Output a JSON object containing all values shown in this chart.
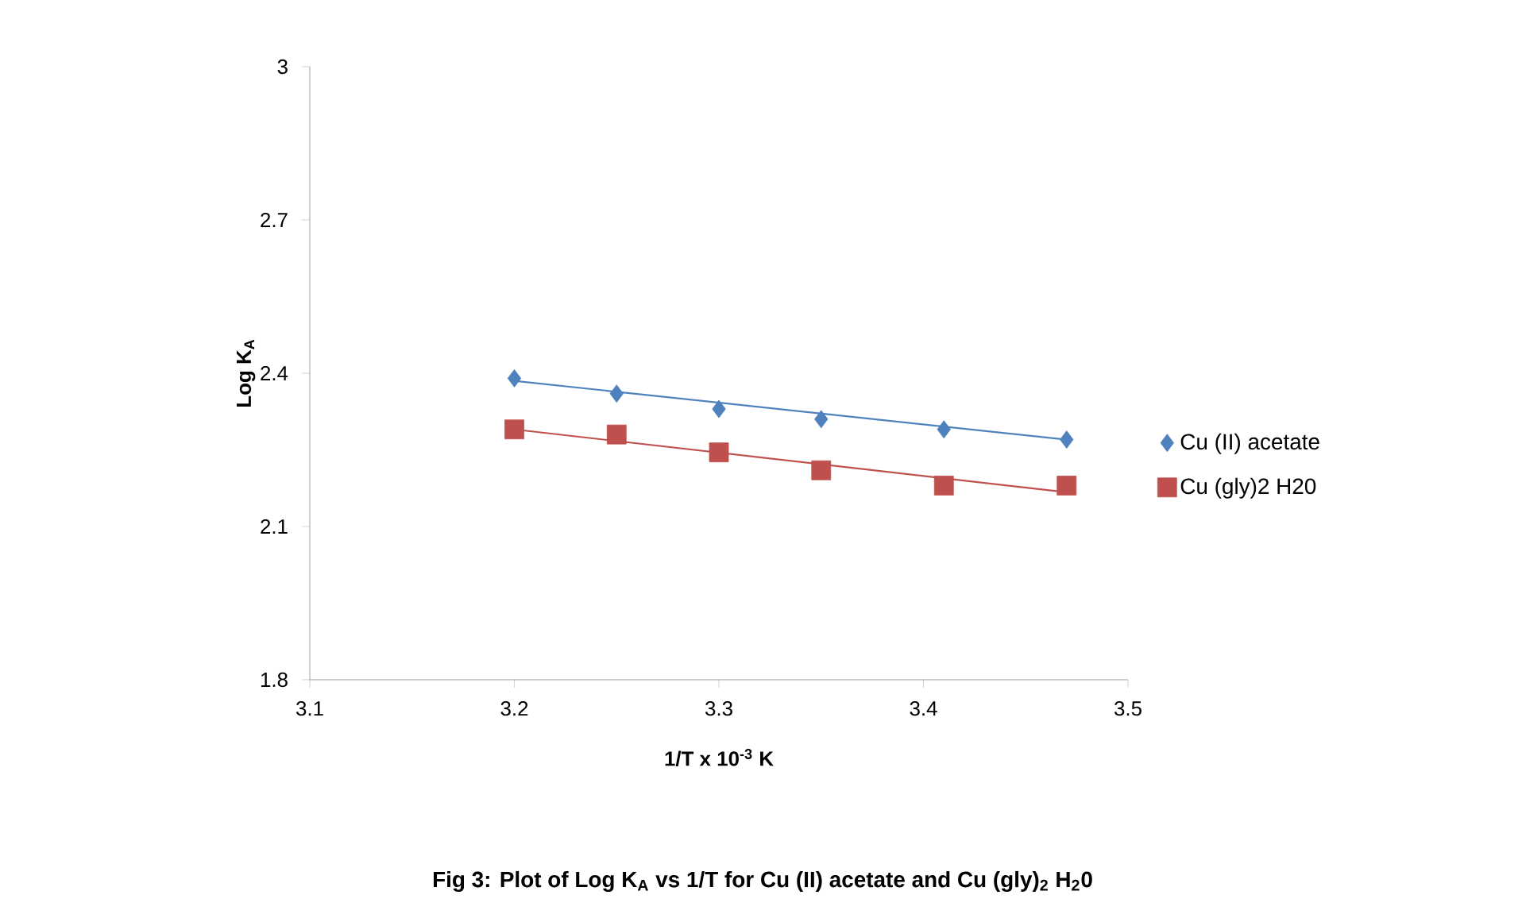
{
  "chart_data": {
    "type": "scatter",
    "xlabel": "1/T x 10$^{-3}$ K",
    "ylabel": "Log K$_{A}$",
    "xlim": [
      3.1,
      3.5
    ],
    "ylim": [
      1.8,
      3
    ],
    "xticks": [
      3.1,
      3.2,
      3.3,
      3.4,
      3.5
    ],
    "yticks": [
      1.8,
      2.1,
      2.4,
      2.7,
      3
    ],
    "legend": "right",
    "grid": false,
    "series": [
      {
        "name": "Cu (II) acetate",
        "color": "#4f81bd",
        "marker": "diamond",
        "x": [
          3.2,
          3.25,
          3.3,
          3.35,
          3.41,
          3.47
        ],
        "values": [
          2.39,
          2.36,
          2.33,
          2.31,
          2.29,
          2.27
        ]
      },
      {
        "name": "Cu (gly)2 H20",
        "color": "#c0504d",
        "marker": "square",
        "x": [
          3.2,
          3.25,
          3.3,
          3.35,
          3.41,
          3.47
        ],
        "values": [
          2.29,
          2.28,
          2.245,
          2.21,
          2.18,
          2.18
        ]
      },
      {
        "type": "line",
        "color": "#4f81bd",
        "line_style": "solid",
        "x": [
          3.2,
          3.47
        ],
        "values": [
          2.385,
          2.27
        ]
      },
      {
        "type": "line",
        "color": "#c0504d",
        "line_style": "solid",
        "x": [
          3.2,
          3.47
        ],
        "values": [
          2.29,
          2.167
        ]
      }
    ],
    "annotations": [
      "Fig 3: Plot of Log K$_{A}$ vs 1/T for Cu (II) acetate and Cu (gly)$_{2}$ H$_{2}$0"
    ]
  }
}
